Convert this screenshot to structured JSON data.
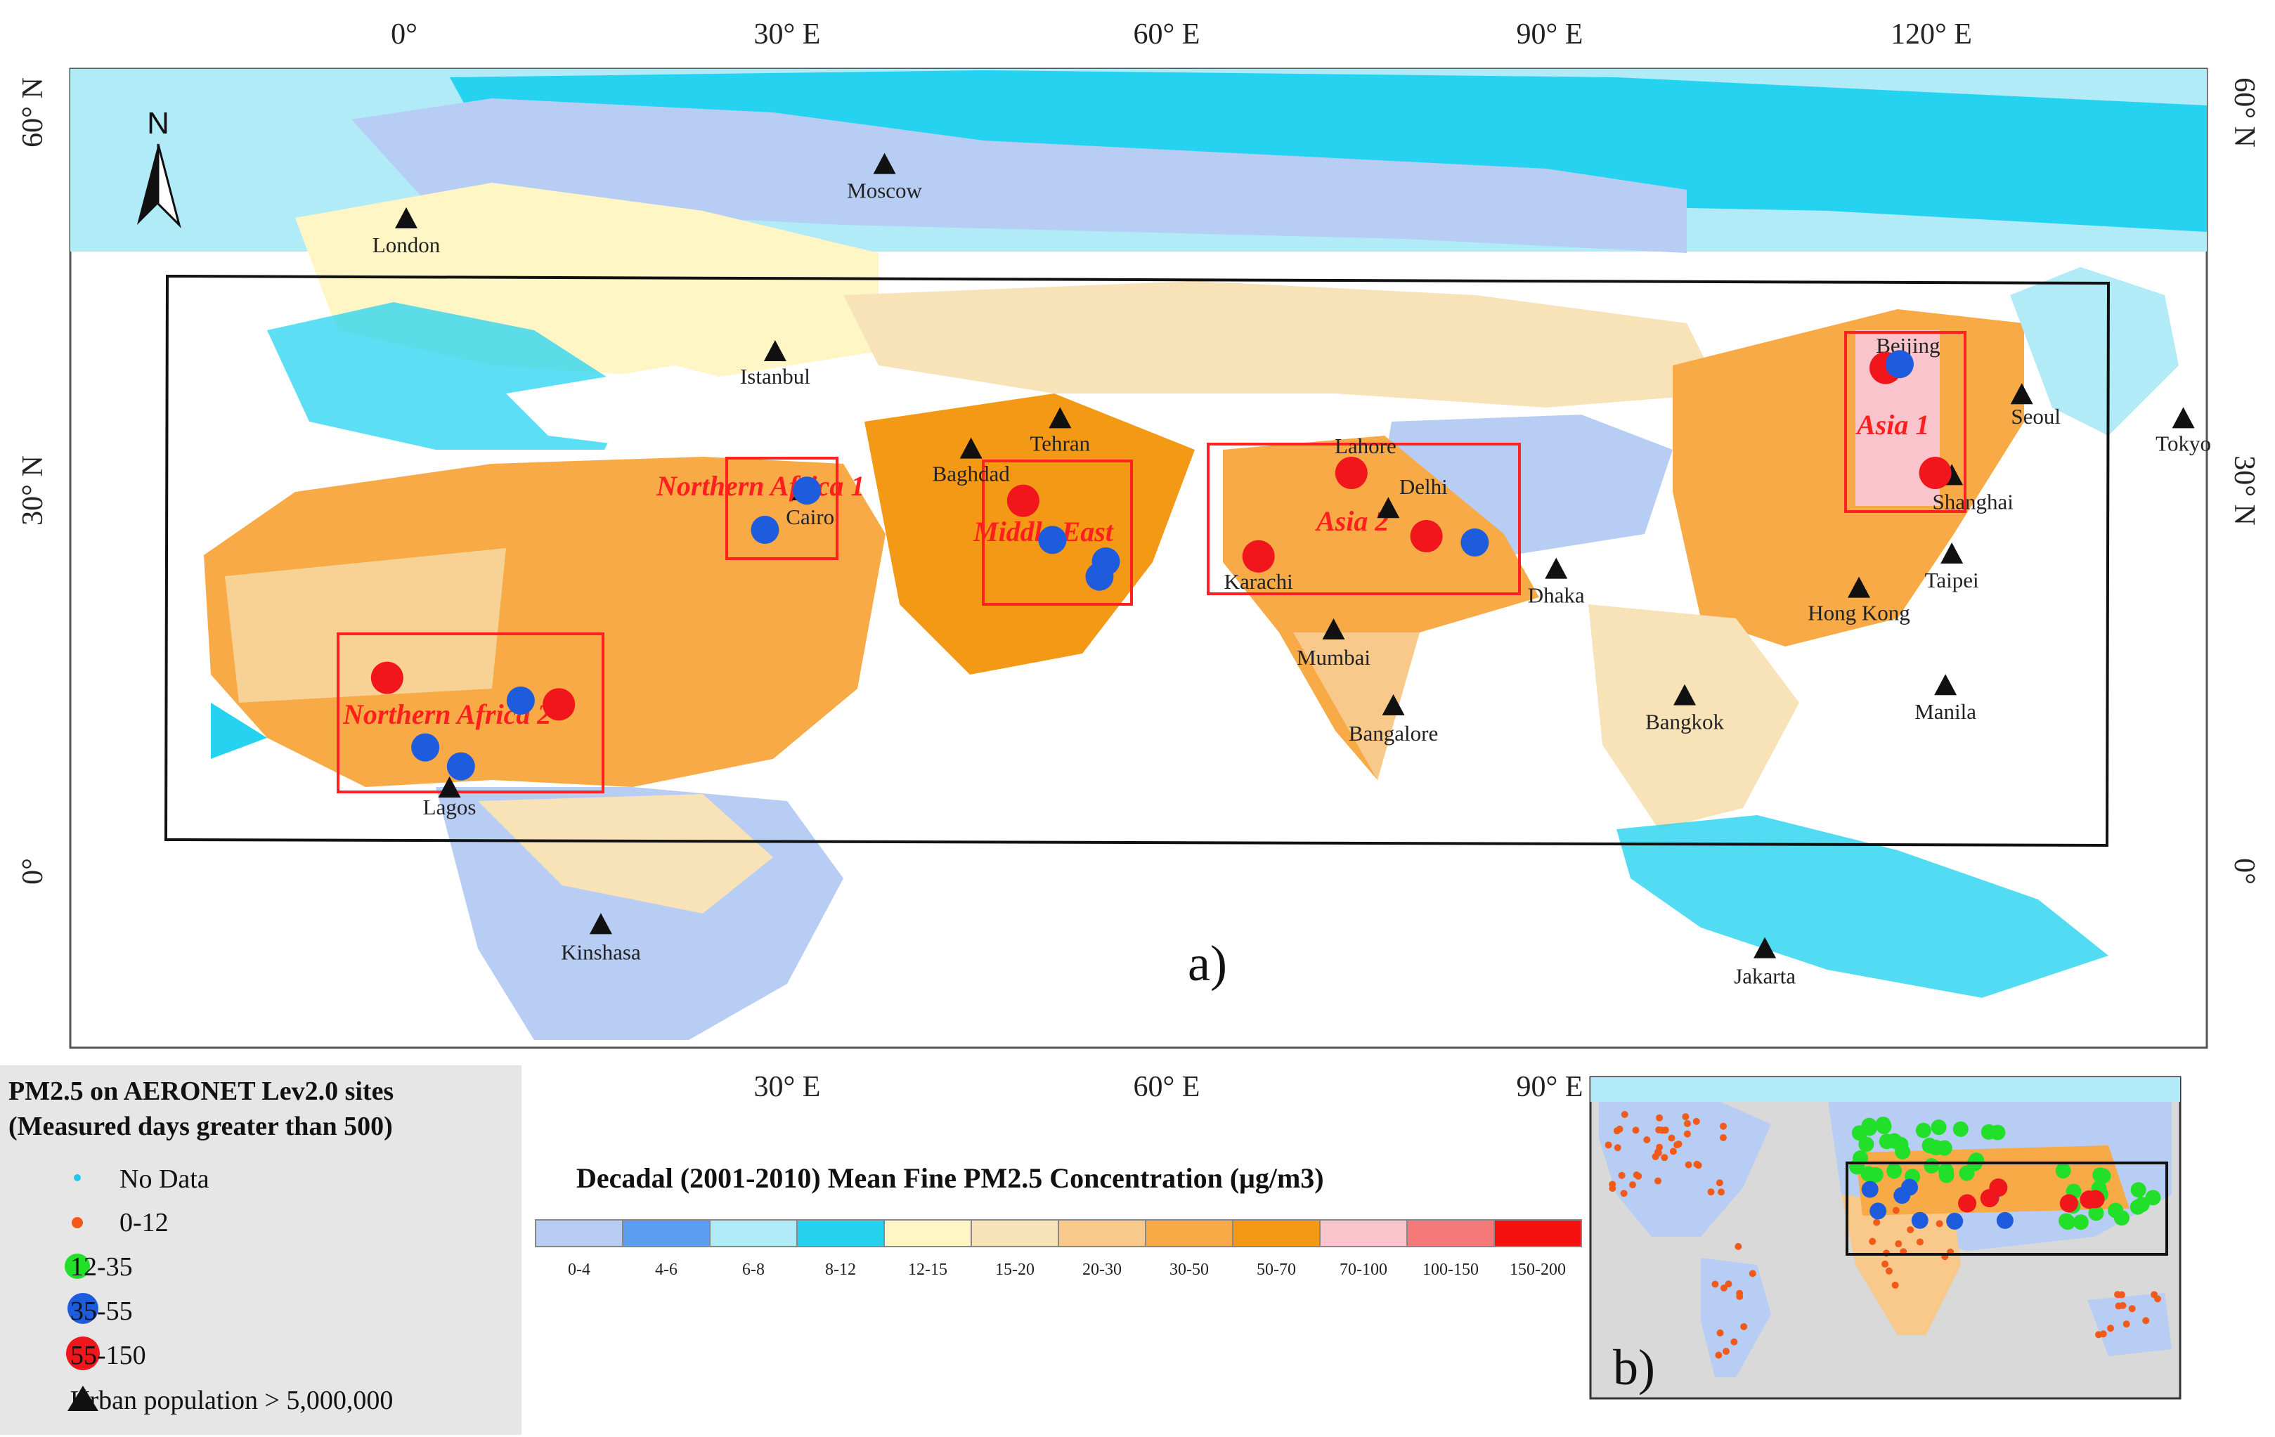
{
  "palette": {
    "c0_4": "#b7cdf4",
    "c4_6": "#5b9ef0",
    "c6_8": "#b0ebf7",
    "c8_12": "#25d3f0",
    "c12_15": "#fff5c5",
    "c15_20": "#f8e2b8",
    "c20_30": "#f8c98a",
    "c30_50": "#f7aa45",
    "c50_70": "#f49916",
    "c70_100": "#f9c4cb",
    "c100_150": "#f57979",
    "c150_200": "#f51010",
    "site_red": "#f0161b",
    "site_blue": "#1e5cde",
    "site_green": "#22e02a",
    "site_orange": "#f25a1a",
    "site_cyan": "#20c8e8",
    "region_box": "#ff2222"
  },
  "map_a": {
    "panel_label": "a)",
    "top_ticks": [
      "0°",
      "30° E",
      "60° E",
      "90° E",
      "120° E"
    ],
    "bottom_ticks": [
      "30° E",
      "60° E",
      "90° E"
    ],
    "left_ticks": [
      "60° N",
      "30° N",
      "0°"
    ],
    "right_ticks": [
      "60° N",
      "30° N",
      "0°"
    ],
    "north_label": "N",
    "regions": [
      {
        "label": "Northern Africa 1"
      },
      {
        "label": "Northern Africa 2"
      },
      {
        "label": "Middle East"
      },
      {
        "label": "Asia 2"
      },
      {
        "label": "Asia 1"
      }
    ],
    "cities": [
      {
        "name": "London",
        "lon": 0,
        "lat": 51.5
      },
      {
        "name": "Moscow",
        "lon": 37.6,
        "lat": 55.8
      },
      {
        "name": "Istanbul",
        "lon": 29,
        "lat": 41
      },
      {
        "name": "Tehran",
        "lon": 51.4,
        "lat": 35.7
      },
      {
        "name": "Baghdad",
        "lon": 44.4,
        "lat": 33.3
      },
      {
        "name": "Cairo",
        "lon": 31.2,
        "lat": 30
      },
      {
        "name": "Lagos",
        "lon": 3.4,
        "lat": 6.5
      },
      {
        "name": "Kinshasa",
        "lon": 15.3,
        "lat": -4.3
      },
      {
        "name": "Lahore",
        "lon": 74.3,
        "lat": 31.5
      },
      {
        "name": "Delhi",
        "lon": 77.2,
        "lat": 28.6
      },
      {
        "name": "Karachi",
        "lon": 67,
        "lat": 24.9
      },
      {
        "name": "Mumbai",
        "lon": 72.9,
        "lat": 19
      },
      {
        "name": "Bangalore",
        "lon": 77.6,
        "lat": 13
      },
      {
        "name": "Dhaka",
        "lon": 90.4,
        "lat": 23.8
      },
      {
        "name": "Bangkok",
        "lon": 100.5,
        "lat": 13.8
      },
      {
        "name": "Jakarta",
        "lon": 106.8,
        "lat": -6.2
      },
      {
        "name": "Hong Kong",
        "lon": 114.2,
        "lat": 22.3
      },
      {
        "name": "Manila",
        "lon": 121,
        "lat": 14.6
      },
      {
        "name": "Taipei",
        "lon": 121.5,
        "lat": 25
      },
      {
        "name": "Shanghai",
        "lon": 121.5,
        "lat": 31.2
      },
      {
        "name": "Beijing",
        "lon": 116.4,
        "lat": 39.9
      },
      {
        "name": "Seoul",
        "lon": 127,
        "lat": 37.6
      },
      {
        "name": "Tokyo",
        "lon": 139.7,
        "lat": 35.7
      }
    ],
    "sites": [
      {
        "lon": -1.5,
        "lat": 15.3,
        "cls": "55-150"
      },
      {
        "lon": 12,
        "lat": 13.2,
        "cls": "55-150"
      },
      {
        "lon": 9,
        "lat": 13.5,
        "cls": "35-55"
      },
      {
        "lon": 1.5,
        "lat": 9.8,
        "cls": "35-55"
      },
      {
        "lon": 4.3,
        "lat": 8.3,
        "cls": "35-55"
      },
      {
        "lon": 31.5,
        "lat": 30.1,
        "cls": "35-55"
      },
      {
        "lon": 28.2,
        "lat": 27,
        "cls": "35-55"
      },
      {
        "lon": 48.5,
        "lat": 29.3,
        "cls": "55-150"
      },
      {
        "lon": 50.8,
        "lat": 26.2,
        "cls": "35-55"
      },
      {
        "lon": 55,
        "lat": 24.5,
        "cls": "35-55"
      },
      {
        "lon": 54.5,
        "lat": 23.3,
        "cls": "35-55"
      },
      {
        "lon": 74.3,
        "lat": 31.5,
        "cls": "55-150"
      },
      {
        "lon": 80.2,
        "lat": 26.5,
        "cls": "55-150"
      },
      {
        "lon": 84,
        "lat": 26,
        "cls": "35-55"
      },
      {
        "lon": 67,
        "lat": 24.9,
        "cls": "55-150"
      },
      {
        "lon": 116.3,
        "lat": 39.8,
        "cls": "55-150"
      },
      {
        "lon": 117.4,
        "lat": 40.1,
        "cls": "35-55"
      },
      {
        "lon": 120.2,
        "lat": 31.5,
        "cls": "55-150"
      }
    ]
  },
  "legend": {
    "title_line1": "PM2.5 on AERONET Lev2.0 sites",
    "title_line2": "(Measured days greater than 500)",
    "items": [
      {
        "label": "No Data"
      },
      {
        "label": "0-12"
      },
      {
        "label": "12-35"
      },
      {
        "label": "35-55"
      },
      {
        "label": "55-150"
      },
      {
        "label": "Urban population > 5,000,000"
      }
    ]
  },
  "colorbar": {
    "title": "Decadal (2001-2010) Mean Fine PM2.5 Concentration (μg/m3)",
    "bins": [
      "0-4",
      "4-6",
      "6-8",
      "8-12",
      "12-15",
      "15-20",
      "20-30",
      "30-50",
      "50-70",
      "70-100",
      "100-150",
      "150-200"
    ]
  },
  "map_b": {
    "panel_label": "b)"
  }
}
